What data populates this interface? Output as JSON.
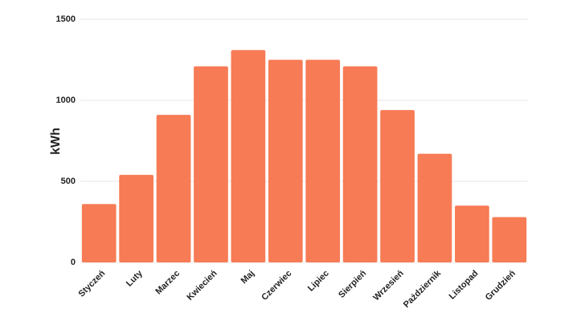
{
  "chart_data": {
    "type": "bar",
    "y_label": "kWh",
    "categories": [
      "Styczeń",
      "Luty",
      "Marzec",
      "Kwiecień",
      "Maj",
      "Czerwiec",
      "Lipiec",
      "Sierpień",
      "Wrzesień",
      "Październik",
      "Listopad",
      "Grudzień"
    ],
    "values": [
      360,
      540,
      910,
      1210,
      1310,
      1250,
      1250,
      1210,
      940,
      670,
      350,
      280
    ],
    "color": "#f77b55",
    "ylim": [
      0,
      1500
    ],
    "yticks": [
      0,
      500,
      1000,
      1500
    ],
    "grid": true
  }
}
